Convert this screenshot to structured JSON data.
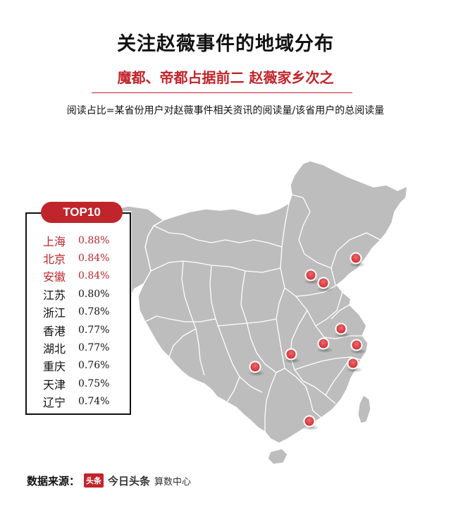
{
  "header": {
    "title": "关注赵薇事件的地域分布",
    "subtitle": "魔都、帝都占据前二 赵薇家乡次之",
    "note": "阅读占比=某省份用户对赵薇事件相关资讯的阅读量/该省用户的总阅读量"
  },
  "ranking": {
    "badge": "TOP10",
    "items": [
      {
        "province": "上海",
        "value": "0.88%",
        "highlight": true
      },
      {
        "province": "北京",
        "value": "0.84%",
        "highlight": true
      },
      {
        "province": "安徽",
        "value": "0.84%",
        "highlight": true
      },
      {
        "province": "江苏",
        "value": "0.80%",
        "highlight": false
      },
      {
        "province": "浙江",
        "value": "0.78%",
        "highlight": false
      },
      {
        "province": "香港",
        "value": "0.77%",
        "highlight": false
      },
      {
        "province": "湖北",
        "value": "0.77%",
        "highlight": false
      },
      {
        "province": "重庆",
        "value": "0.76%",
        "highlight": false
      },
      {
        "province": "天津",
        "value": "0.75%",
        "highlight": false
      },
      {
        "province": "辽宁",
        "value": "0.74%",
        "highlight": false
      }
    ]
  },
  "map": {
    "land_color": "#bdbdbd",
    "border_color": "#ffffff",
    "marker_color": "#d9393d"
  },
  "footer": {
    "source_label": "数据来源：",
    "logo_text": "头条",
    "brand": "今日头条",
    "brand_sub": "算数中心"
  },
  "colors": {
    "accent": "#c0252b",
    "text": "#111111"
  }
}
